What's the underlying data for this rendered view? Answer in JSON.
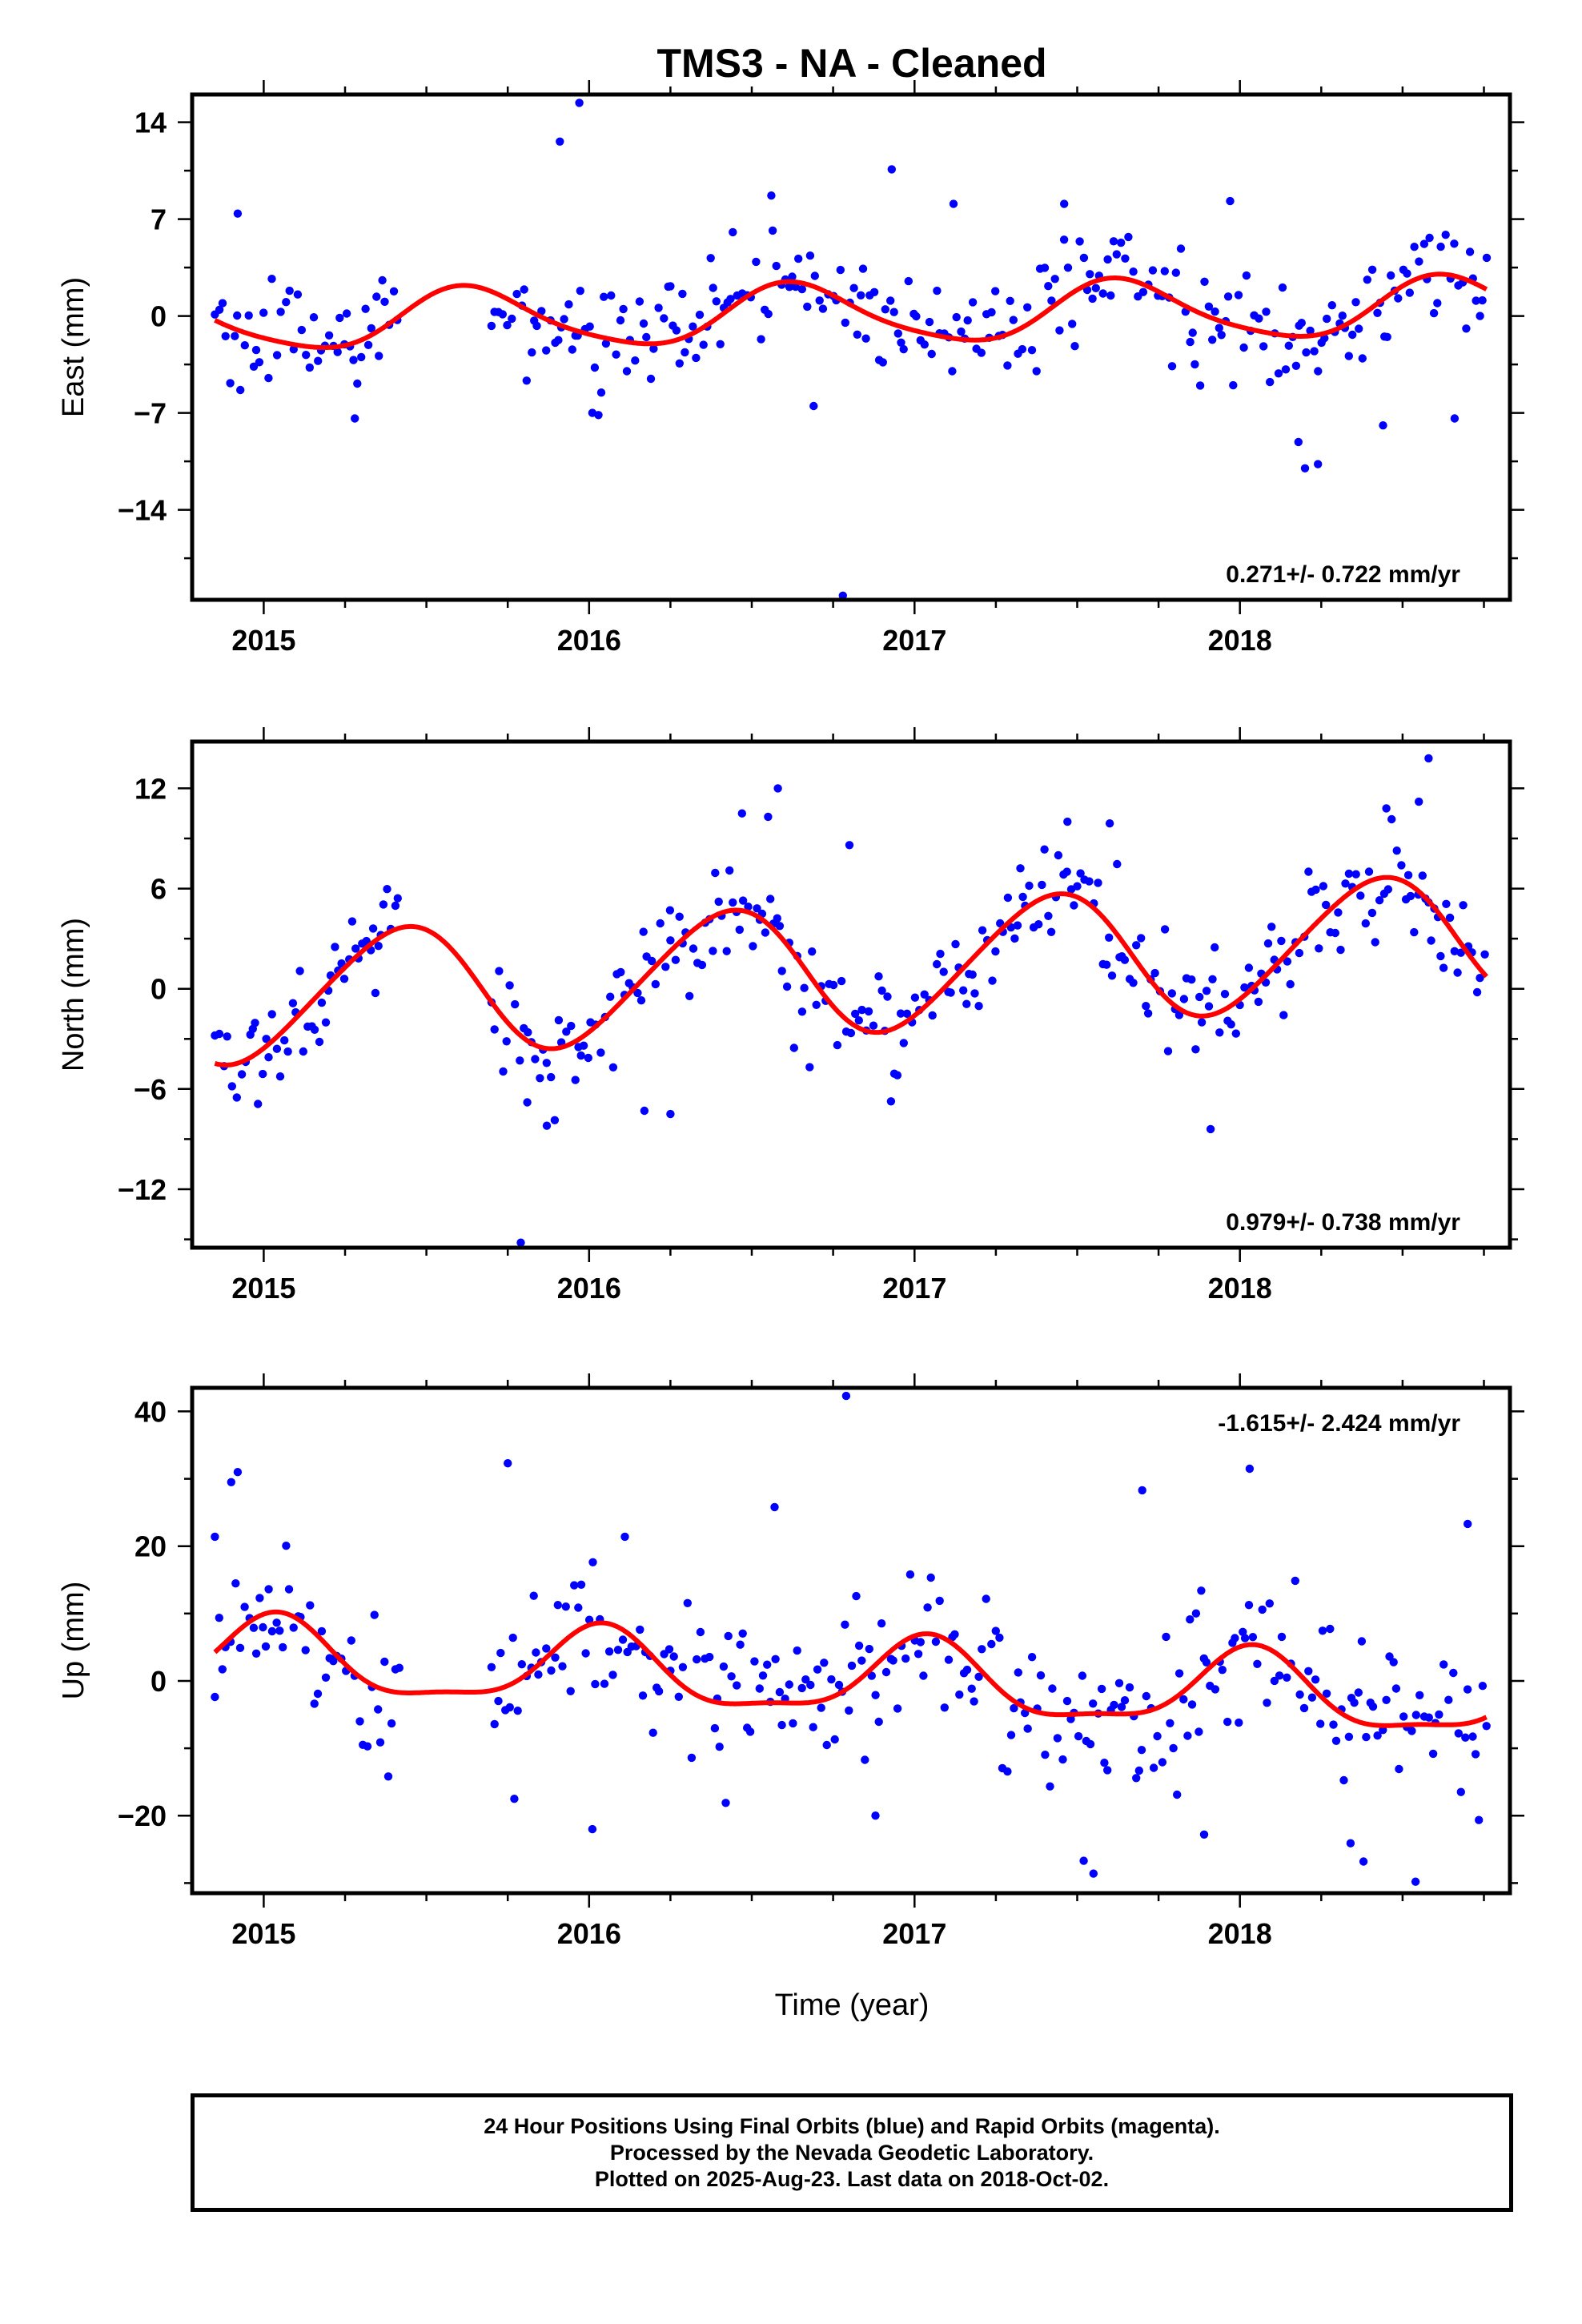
{
  "title": "TMS3  - NA - Cleaned",
  "xlabel": "Time (year)",
  "colors": {
    "data_points": "#0000ff",
    "model_fit": "#ff0000",
    "frame": "#000000"
  },
  "chart_data": [
    {
      "type": "scatter",
      "id": "east",
      "ylabel": "East (mm)",
      "xlim": [
        2014.78,
        2018.83
      ],
      "ylim": [
        -20.5,
        16.0
      ],
      "xticks": [
        2015,
        2016,
        2017,
        2018
      ],
      "yticks": [
        14,
        7,
        0,
        -7,
        -14
      ],
      "ytick_labels": [
        "14",
        "7",
        "0",
        "−7",
        "−14"
      ],
      "rate_text": "0.271+/- 0.722 mm/yr",
      "rate_position": "bottom-right",
      "model": {
        "mean": 0.1,
        "trend": 0.271,
        "sin1": -1.6,
        "cos1": -1.4,
        "sin2": 0.3,
        "cos2": 0.2,
        "ref": 2016.8
      },
      "segments": [
        [
          2014.85,
          2015.42
        ],
        [
          2015.7,
          2016.25
        ],
        [
          2016.25,
          2018.76
        ]
      ],
      "noise_sd": 1.9,
      "outliers": [
        [
          2015.97,
          15.4
        ],
        [
          2015.91,
          12.6
        ],
        [
          2016.93,
          10.6
        ],
        [
          2016.56,
          8.7
        ],
        [
          2017.12,
          8.1
        ],
        [
          2017.46,
          8.1
        ],
        [
          2017.97,
          8.3
        ],
        [
          2016.78,
          -20.2
        ],
        [
          2018.2,
          -11.0
        ],
        [
          2018.24,
          -10.7
        ],
        [
          2018.18,
          -9.1
        ],
        [
          2016.01,
          -7.0
        ],
        [
          2018.66,
          -7.4
        ],
        [
          2018.44,
          -7.9
        ],
        [
          2015.28,
          -7.4
        ],
        [
          2016.69,
          -6.5
        ],
        [
          2014.92,
          7.4
        ]
      ]
    },
    {
      "type": "scatter",
      "id": "north",
      "ylabel": "North (mm)",
      "xlim": [
        2014.78,
        2018.83
      ],
      "ylim": [
        -15.5,
        14.8
      ],
      "xticks": [
        2015,
        2016,
        2017,
        2018
      ],
      "yticks": [
        12,
        6,
        0,
        -6,
        -12
      ],
      "ytick_labels": [
        "12",
        "6",
        "0",
        "−6",
        "−12"
      ],
      "rate_text": "0.979+/- 0.738 mm/yr",
      "rate_position": "bottom-right",
      "model": {
        "mean": 1.2,
        "trend": 0.979,
        "sin1": 1.9,
        "cos1": -3.3,
        "sin2": 0.2,
        "cos2": 0.3,
        "ref": 2016.8
      },
      "segments": [
        [
          2014.85,
          2015.42
        ],
        [
          2015.7,
          2016.25
        ],
        [
          2016.25,
          2018.76
        ]
      ],
      "noise_sd": 1.7,
      "outliers": [
        [
          2015.79,
          -15.2
        ],
        [
          2018.58,
          13.8
        ],
        [
          2016.58,
          12.0
        ],
        [
          2018.45,
          10.8
        ],
        [
          2018.55,
          11.2
        ],
        [
          2015.87,
          -8.2
        ],
        [
          2017.91,
          -8.4
        ],
        [
          2015.81,
          -6.8
        ],
        [
          2016.17,
          -7.3
        ],
        [
          2016.25,
          -7.5
        ],
        [
          2017.47,
          10.0
        ],
        [
          2017.6,
          9.9
        ],
        [
          2016.47,
          10.5
        ],
        [
          2016.55,
          10.3
        ],
        [
          2016.8,
          8.6
        ]
      ]
    },
    {
      "type": "scatter",
      "id": "up",
      "ylabel": "Up (mm)",
      "xlim": [
        2014.78,
        2018.83
      ],
      "ylim": [
        -31.5,
        43.5
      ],
      "xticks": [
        2015,
        2016,
        2017,
        2018
      ],
      "yticks": [
        40,
        20,
        0,
        -20
      ],
      "ytick_labels": [
        "40",
        "20",
        "0",
        "−20"
      ],
      "rate_text": "-1.615+/- 2.424 mm/yr",
      "rate_position": "top-right",
      "model": {
        "mean": 0.2,
        "trend": -1.615,
        "sin1": 1.2,
        "cos1": 5.4,
        "sin2": 0.9,
        "cos2": 1.4,
        "ref": 2016.8
      },
      "segments": [
        [
          2014.85,
          2015.42
        ],
        [
          2015.7,
          2016.25
        ],
        [
          2016.25,
          2018.76
        ]
      ],
      "noise_sd": 5.8,
      "outliers": [
        [
          2016.79,
          42.3
        ],
        [
          2014.92,
          31.0
        ],
        [
          2014.9,
          29.5
        ],
        [
          2015.75,
          32.3
        ],
        [
          2018.03,
          31.5
        ],
        [
          2016.57,
          25.8
        ],
        [
          2017.7,
          28.3
        ],
        [
          2018.7,
          23.3
        ],
        [
          2014.85,
          21.4
        ],
        [
          2016.11,
          21.4
        ],
        [
          2018.54,
          -29.8
        ],
        [
          2017.55,
          -28.6
        ],
        [
          2017.52,
          -26.7
        ],
        [
          2018.38,
          -26.8
        ],
        [
          2016.01,
          -22.0
        ],
        [
          2017.89,
          -22.8
        ],
        [
          2018.34,
          -24.1
        ],
        [
          2015.77,
          -17.5
        ],
        [
          2016.88,
          -20.0
        ],
        [
          2016.42,
          -18.1
        ]
      ]
    }
  ],
  "footer": {
    "line1": "24 Hour Positions Using Final Orbits (blue) and Rapid Orbits (magenta).",
    "line2": "Processed by the Nevada Geodetic Laboratory.",
    "line3": "Plotted on 2025-Aug-23. Last data on 2018-Oct-02."
  }
}
